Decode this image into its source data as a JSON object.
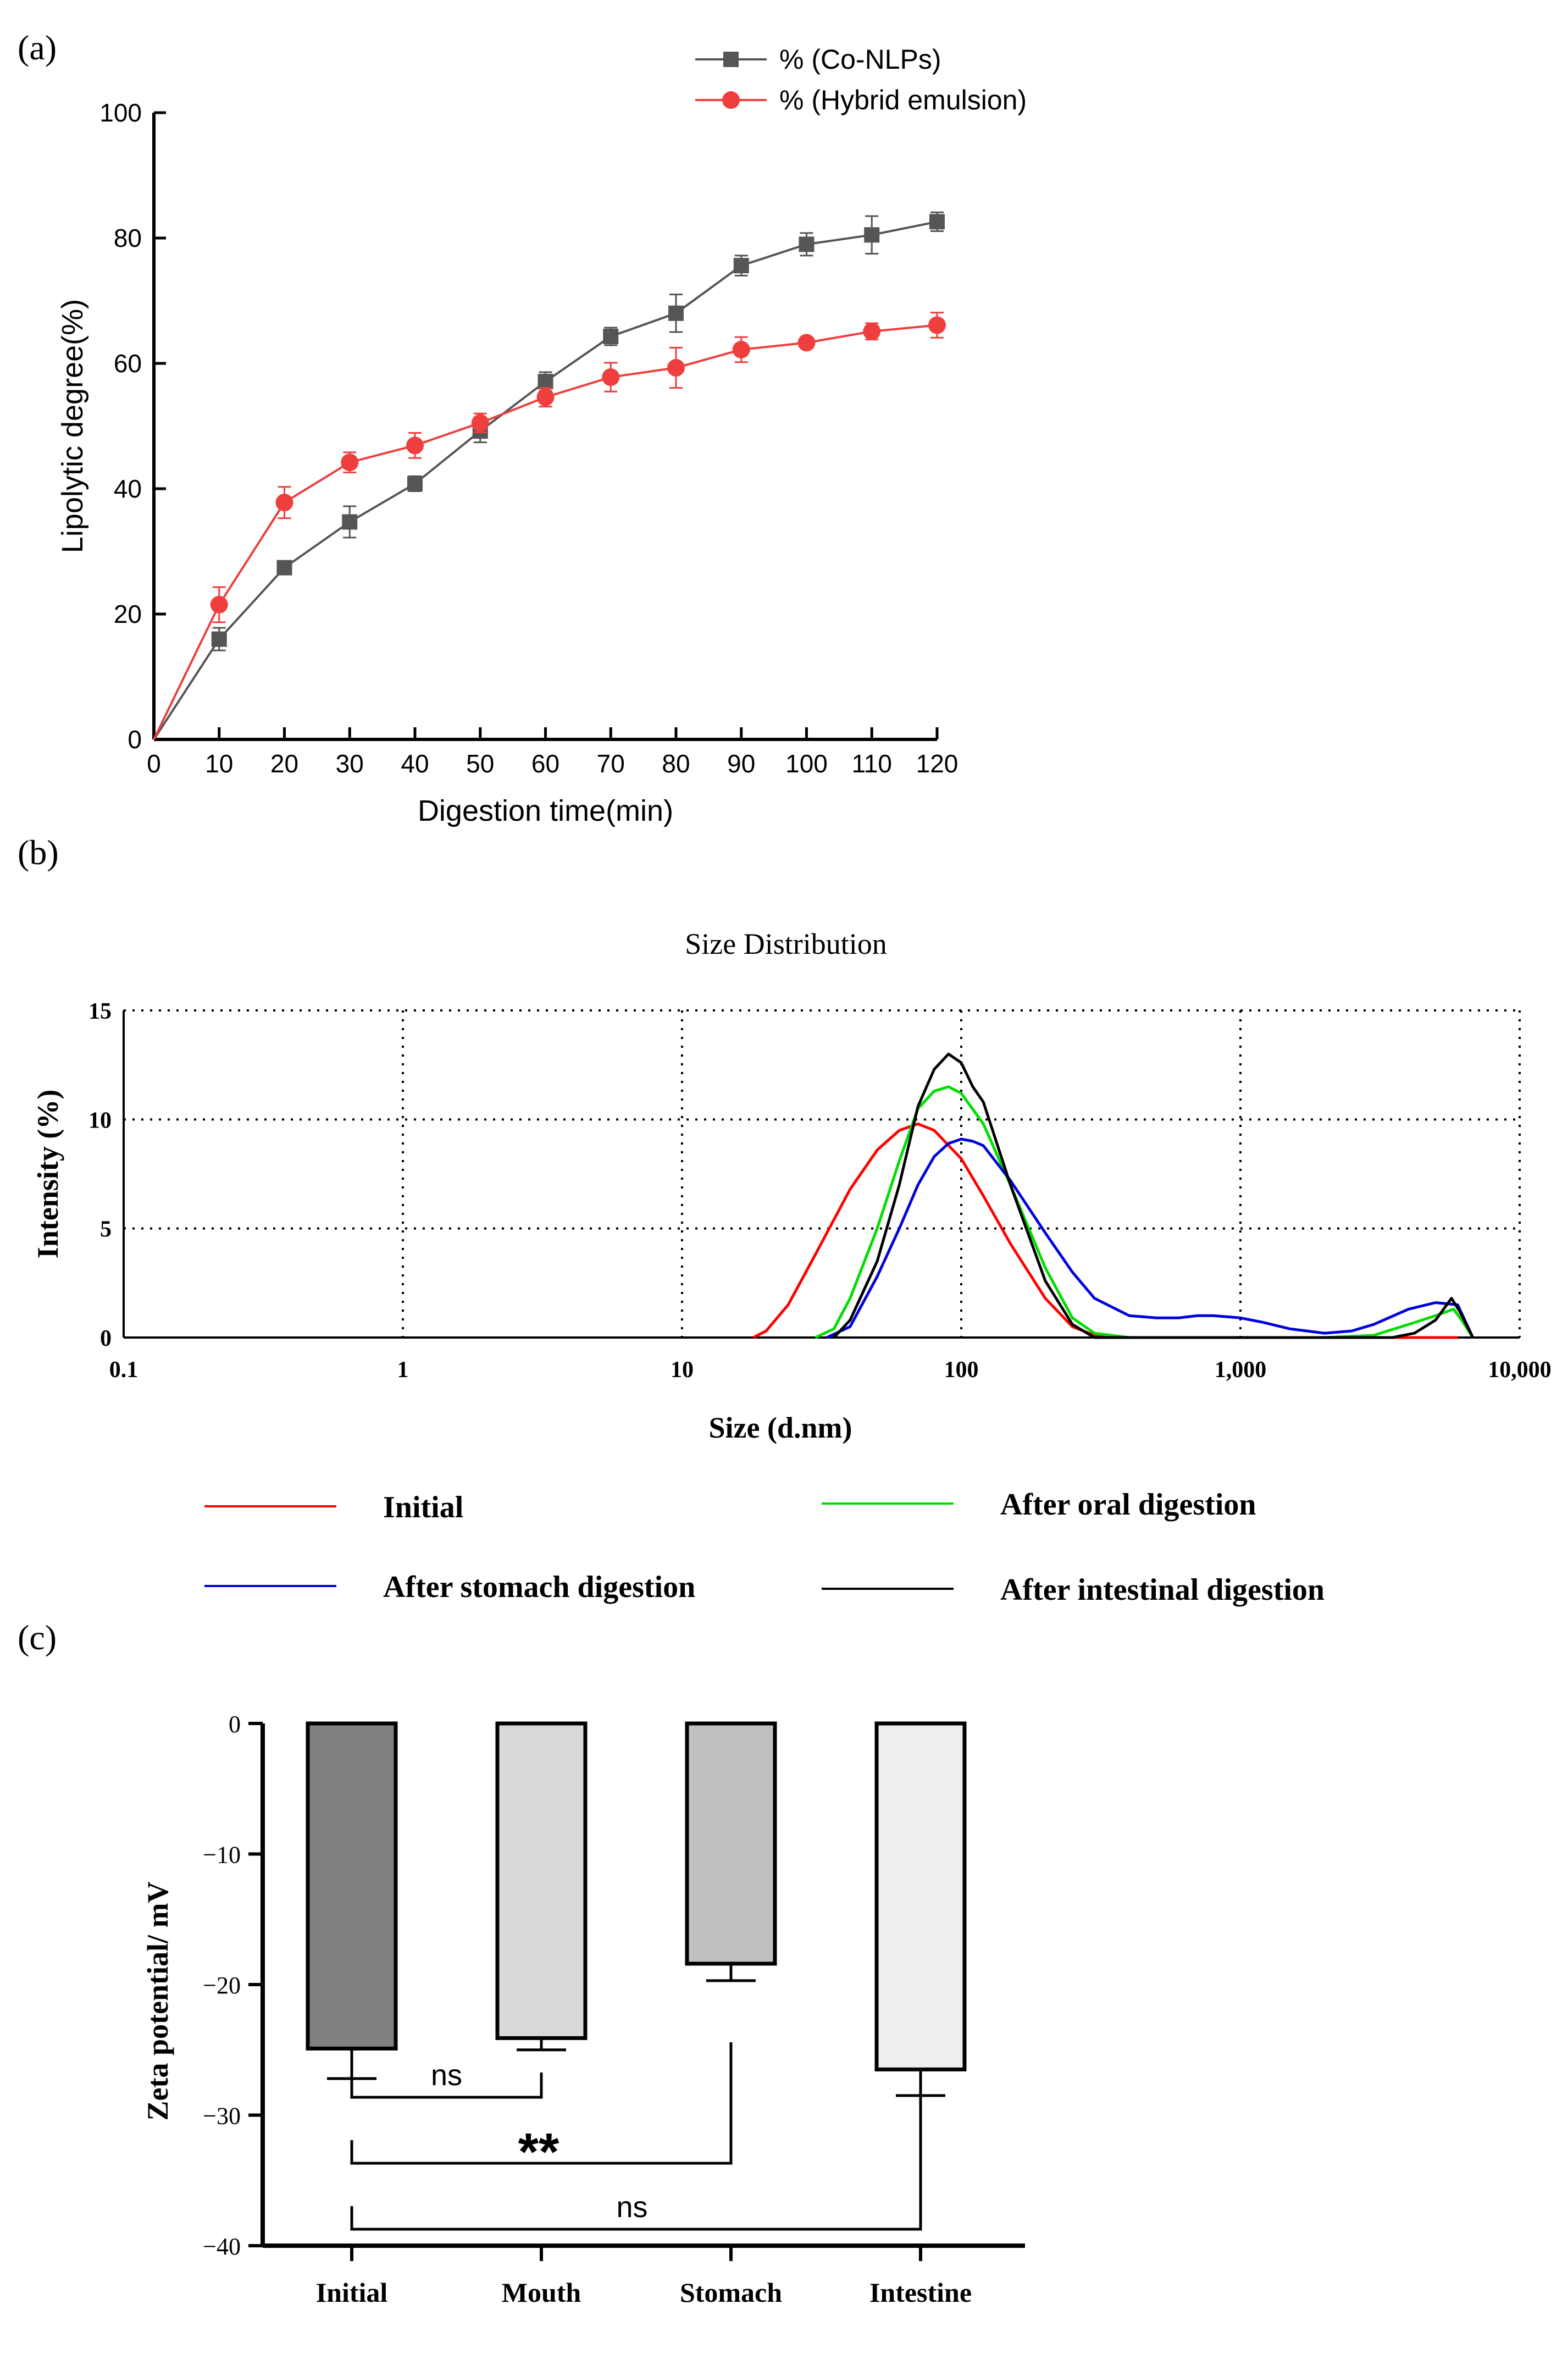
{
  "panels": {
    "a": "(a)",
    "b": "(b)",
    "c": "(c)"
  },
  "chart_data": [
    {
      "type": "line",
      "xlabel": "Digestion time(min)",
      "ylabel": "Lipolytic degree(%)",
      "xlim": [
        0,
        120
      ],
      "ylim": [
        0,
        100
      ],
      "xticks": [
        0,
        10,
        20,
        30,
        40,
        50,
        60,
        70,
        80,
        90,
        100,
        110,
        120
      ],
      "yticks": [
        0,
        20,
        40,
        60,
        80,
        100
      ],
      "legend_position": "top-right",
      "series": [
        {
          "name": "% (Co-NLPs)",
          "color": "#555555",
          "marker": "square",
          "x": [
            0,
            10,
            20,
            30,
            40,
            50,
            60,
            70,
            80,
            90,
            100,
            110,
            120
          ],
          "y": [
            0,
            16,
            27.4,
            34.7,
            40.8,
            49.2,
            57.1,
            64.3,
            68,
            75.6,
            79,
            80.5,
            82.6
          ],
          "err": [
            0,
            1.8,
            0.8,
            2.5,
            1.2,
            1.8,
            1.5,
            1.4,
            3.0,
            1.6,
            1.8,
            3.0,
            1.5
          ]
        },
        {
          "name": "% (Hybrid emulsion)",
          "color": "#ef3e3e",
          "marker": "circle",
          "x": [
            0,
            10,
            20,
            30,
            40,
            50,
            60,
            70,
            80,
            90,
            100,
            110,
            120
          ],
          "y": [
            0,
            21.5,
            37.8,
            44.2,
            46.9,
            50.5,
            54.6,
            57.8,
            59.3,
            62.2,
            63.3,
            65.1,
            66.1
          ],
          "err": [
            0,
            2.8,
            2.5,
            1.6,
            2.0,
            1.5,
            1.5,
            2.3,
            3.2,
            2.0,
            0.6,
            1.3,
            2.0
          ]
        }
      ]
    },
    {
      "type": "line",
      "title": "Size Distribution",
      "xlabel": "Size (d.nm)",
      "ylabel": "Intensity (%)",
      "xscale": "log",
      "xlim": [
        0.1,
        10000
      ],
      "ylim": [
        0,
        15
      ],
      "xticks": [
        0.1,
        1,
        10,
        100,
        1000,
        10000
      ],
      "xtick_labels": [
        "0.1",
        "1",
        "10",
        "100",
        "1,000",
        "10,000"
      ],
      "yticks": [
        0,
        5,
        10,
        15
      ],
      "grid": "dotted",
      "legend_position": "bottom",
      "series": [
        {
          "name": "Initial",
          "color": "#ff0000",
          "x": [
            18,
            20,
            24,
            30,
            40,
            50,
            60,
            70,
            80,
            100,
            120,
            150,
            200,
            250,
            300,
            400,
            6000
          ],
          "y": [
            0,
            0.3,
            1.5,
            3.8,
            6.8,
            8.6,
            9.5,
            9.8,
            9.5,
            8.2,
            6.5,
            4.3,
            1.8,
            0.5,
            0.1,
            0,
            0
          ]
        },
        {
          "name": "After oral digestion",
          "color": "#00dd00",
          "x": [
            30,
            35,
            40,
            50,
            60,
            70,
            80,
            90,
            100,
            120,
            150,
            200,
            250,
            300,
            400,
            1000,
            2000,
            3000,
            4000,
            5000,
            5800,
            6200,
            6800
          ],
          "y": [
            0,
            0.4,
            1.8,
            5.0,
            8.1,
            10.5,
            11.3,
            11.5,
            11.2,
            9.8,
            7.0,
            3.2,
            0.9,
            0.2,
            0,
            0,
            0,
            0.1,
            0.6,
            1.0,
            1.3,
            0.8,
            0
          ]
        },
        {
          "name": "After stomach digestion",
          "color": "#0000dd",
          "x": [
            33,
            40,
            50,
            60,
            70,
            80,
            90,
            100,
            110,
            120,
            150,
            200,
            250,
            300,
            400,
            500,
            600,
            700,
            800,
            1000,
            1200,
            1500,
            2000,
            2500,
            3000,
            4000,
            5000,
            6000,
            6800
          ],
          "y": [
            0,
            0.5,
            2.8,
            5.0,
            7.0,
            8.3,
            8.9,
            9.1,
            9.0,
            8.8,
            7.2,
            4.8,
            3.0,
            1.8,
            1.0,
            0.9,
            0.9,
            1.0,
            1.0,
            0.9,
            0.7,
            0.4,
            0.2,
            0.3,
            0.6,
            1.3,
            1.6,
            1.5,
            0
          ]
        },
        {
          "name": "After intestinal digestion",
          "color": "#000000",
          "x": [
            35,
            40,
            50,
            60,
            70,
            80,
            90,
            100,
            110,
            120,
            150,
            200,
            250,
            300,
            3500,
            4200,
            5000,
            5700,
            6100,
            6800
          ],
          "y": [
            0,
            0.8,
            3.5,
            7.0,
            10.6,
            12.3,
            13.0,
            12.6,
            11.5,
            10.8,
            7.0,
            2.6,
            0.6,
            0,
            0,
            0.2,
            0.8,
            1.8,
            1.2,
            0
          ]
        }
      ]
    },
    {
      "type": "bar",
      "ylabel": "Zeta potential/ mV",
      "categories": [
        "Initial",
        "Mouth",
        "Stomach",
        "Intestine"
      ],
      "values": [
        -24.9,
        -24.1,
        -18.4,
        -26.5
      ],
      "err": [
        2.3,
        0.9,
        1.3,
        2.0
      ],
      "colors": [
        "#808080",
        "#d9d9d9",
        "#c0c0c0",
        "#eeeeee"
      ],
      "ylim": [
        -40,
        0
      ],
      "yticks": [
        0,
        -10,
        -20,
        -30,
        -40
      ],
      "significance": [
        {
          "from": "Initial",
          "to": "Mouth",
          "label": "ns"
        },
        {
          "from": "Initial",
          "to": "Stomach",
          "label": "**"
        },
        {
          "from": "Initial",
          "to": "Intestine",
          "label": "ns"
        }
      ]
    }
  ]
}
